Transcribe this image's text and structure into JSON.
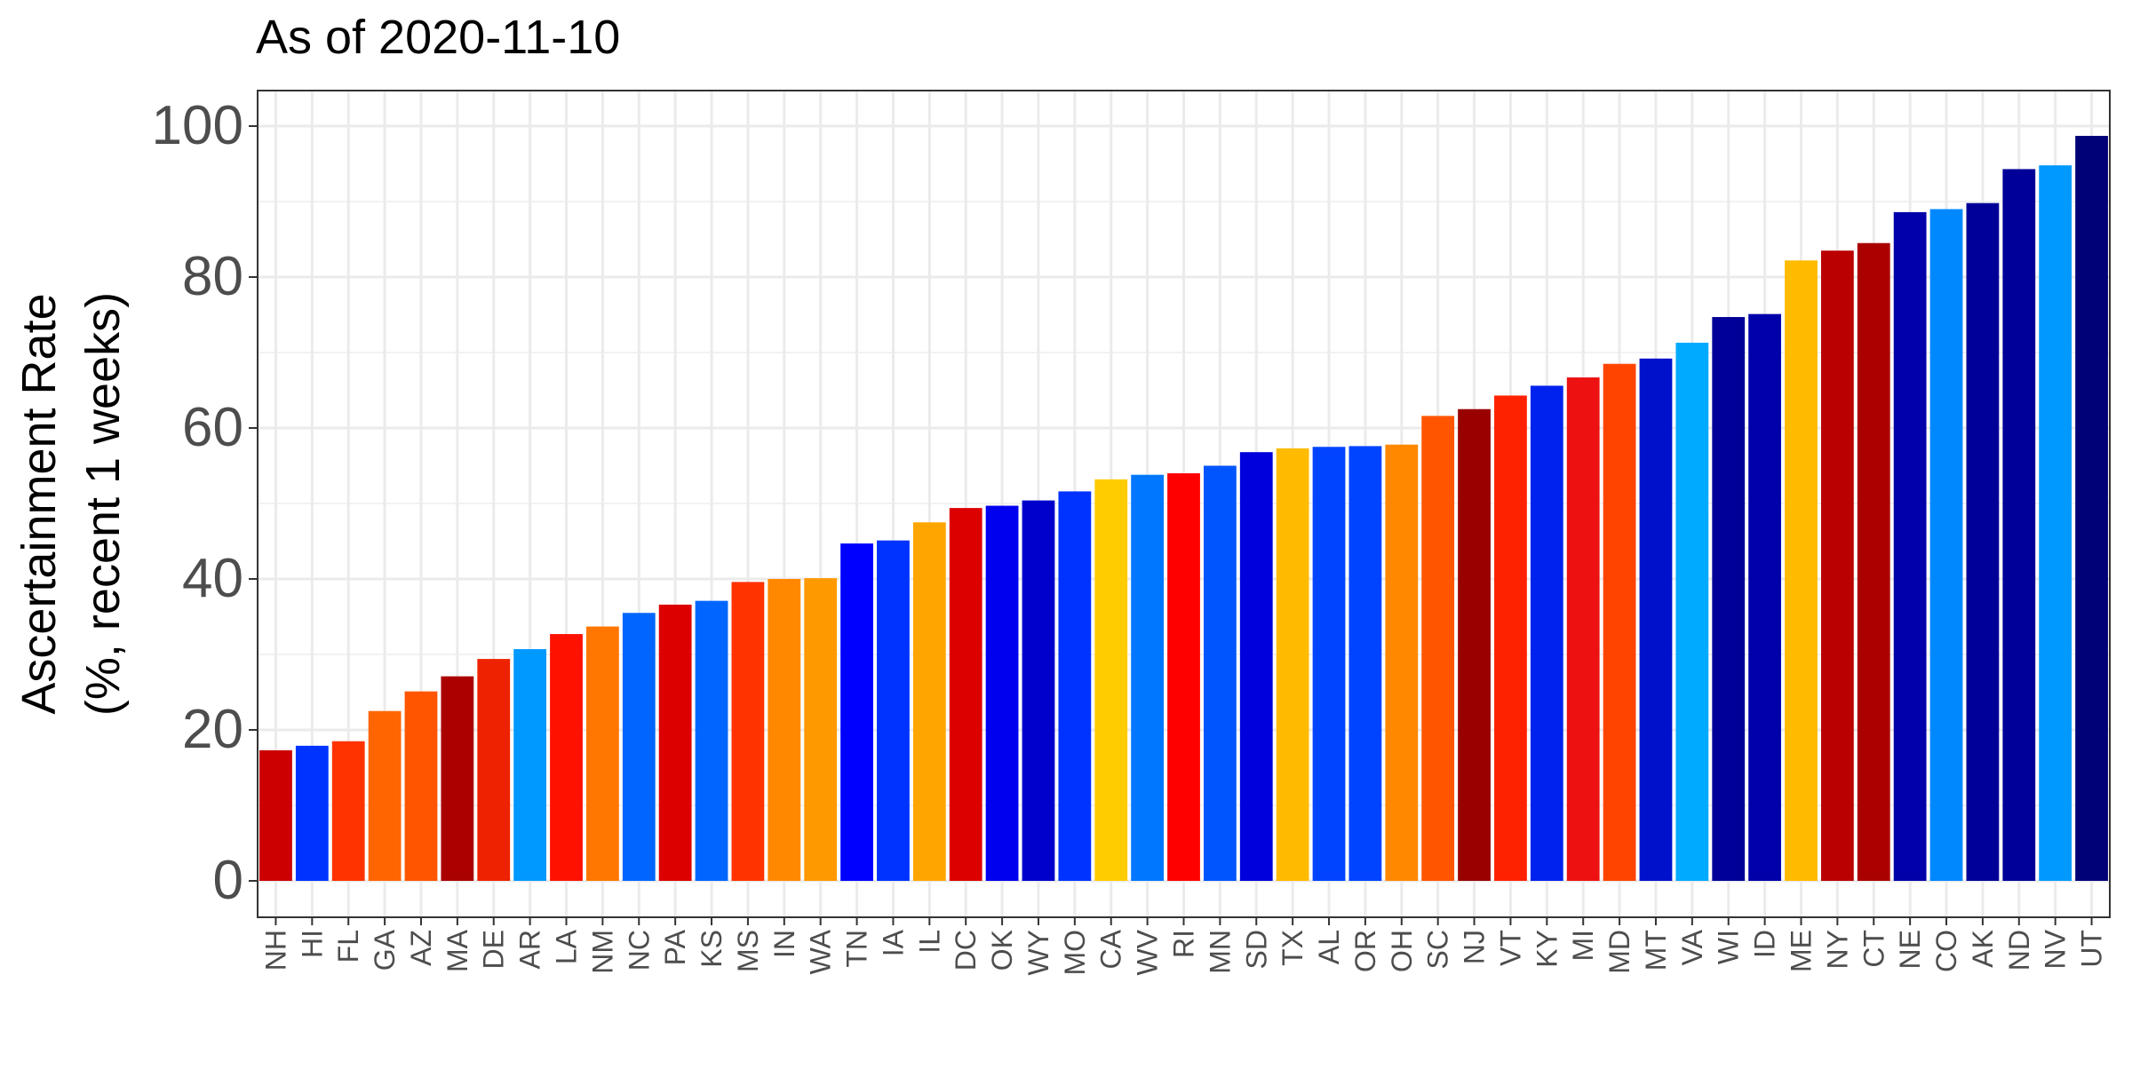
{
  "chart_data": {
    "type": "bar",
    "title": "As of 2020-11-10",
    "ylabel_lines": [
      "Ascertainment Rate",
      "(%, recent 1 weeks)"
    ],
    "xlabel": "",
    "ylim": [
      0,
      100
    ],
    "y_ticks": [
      0,
      20,
      40,
      60,
      80,
      100
    ],
    "grid": true,
    "categories": [
      "NH",
      "HI",
      "FL",
      "GA",
      "AZ",
      "MA",
      "DE",
      "AR",
      "LA",
      "NM",
      "NC",
      "PA",
      "KS",
      "MS",
      "IN",
      "WA",
      "TN",
      "IA",
      "IL",
      "DC",
      "OK",
      "WY",
      "MO",
      "CA",
      "WV",
      "RI",
      "MN",
      "SD",
      "TX",
      "AL",
      "OR",
      "OH",
      "SC",
      "NJ",
      "VT",
      "KY",
      "MI",
      "MD",
      "MT",
      "VA",
      "WI",
      "ID",
      "ME",
      "NY",
      "CT",
      "NE",
      "CO",
      "AK",
      "ND",
      "NV",
      "UT"
    ],
    "values": [
      17.3,
      17.9,
      18.5,
      22.5,
      25.1,
      27.1,
      29.4,
      30.7,
      32.7,
      33.7,
      35.5,
      36.6,
      37.1,
      39.6,
      40.0,
      40.1,
      44.7,
      45.1,
      47.5,
      49.4,
      49.7,
      50.4,
      51.6,
      53.2,
      53.8,
      54.0,
      55.0,
      56.8,
      57.3,
      57.5,
      57.6,
      57.8,
      61.6,
      62.5,
      64.3,
      65.6,
      66.7,
      68.5,
      69.2,
      71.3,
      74.7,
      75.1,
      82.2,
      83.5,
      84.5,
      88.6,
      89.0,
      89.8,
      94.3,
      94.8,
      98.7
    ],
    "colors": [
      "#cc0000",
      "#0033ff",
      "#ff3300",
      "#ff6600",
      "#ff5500",
      "#aa0000",
      "#ee2200",
      "#0099ff",
      "#ff1100",
      "#ff7700",
      "#0066ff",
      "#dd0000",
      "#0066ff",
      "#ff3300",
      "#ff8800",
      "#ff9900",
      "#0000ff",
      "#0033ff",
      "#ffa500",
      "#dd0000",
      "#0000ee",
      "#0000cc",
      "#0033ff",
      "#ffcc00",
      "#0077ff",
      "#ff0000",
      "#0055ff",
      "#0000dd",
      "#ffbb00",
      "#0044ff",
      "#0044ff",
      "#ff8800",
      "#ff5500",
      "#990000",
      "#ff2200",
      "#0022ee",
      "#ee1111",
      "#ff4400",
      "#0011cc",
      "#00aaff",
      "#000099",
      "#0000aa",
      "#ffbb00",
      "#bb0000",
      "#aa0000",
      "#0000aa",
      "#0088ff",
      "#000099",
      "#000099",
      "#0099ff",
      "#000077"
    ]
  }
}
